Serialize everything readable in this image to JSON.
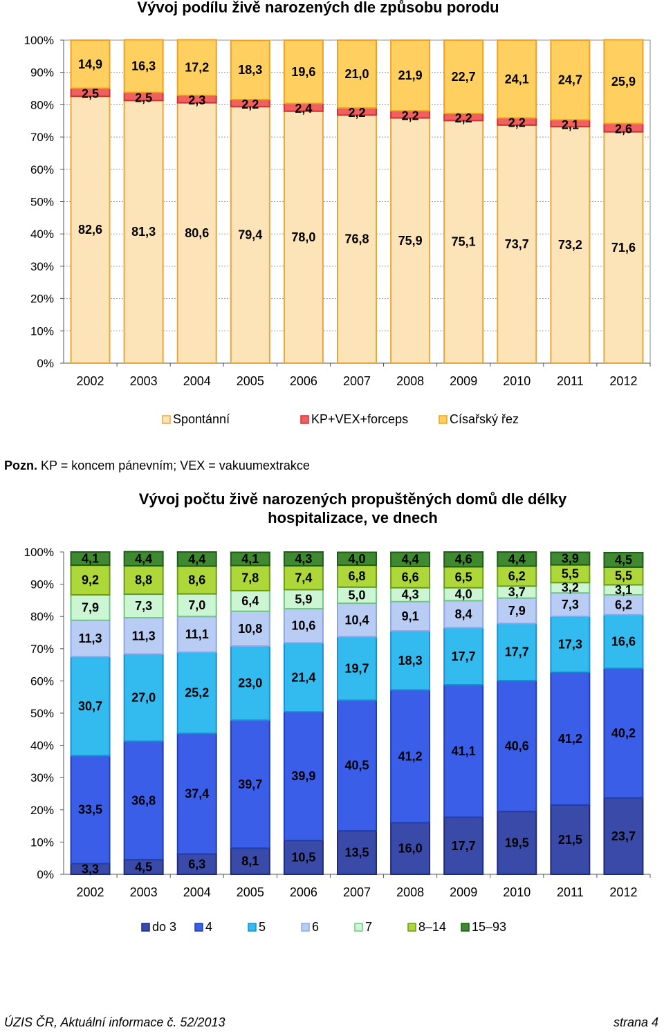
{
  "chart_data": [
    {
      "type": "bar",
      "stacked": true,
      "percent": true,
      "title": "Vývoj podílu živě narozených dle způsobu porodu",
      "categories": [
        "2002",
        "2003",
        "2004",
        "2005",
        "2006",
        "2007",
        "2008",
        "2009",
        "2010",
        "2011",
        "2012"
      ],
      "yticks": [
        "0%",
        "10%",
        "20%",
        "30%",
        "40%",
        "50%",
        "60%",
        "70%",
        "80%",
        "90%",
        "100%"
      ],
      "ylim": [
        0,
        100
      ],
      "grid": true,
      "legend_position": "bottom",
      "series": [
        {
          "name": "Spontánní",
          "color": "#fde3b8",
          "values": [
            82.6,
            81.3,
            80.6,
            79.4,
            78.0,
            76.8,
            75.9,
            75.1,
            73.7,
            73.2,
            71.6
          ],
          "labels": [
            "82,6",
            "81,3",
            "80,6",
            "79,4",
            "78,0",
            "76,8",
            "75,9",
            "75,1",
            "73,7",
            "73,2",
            "71,6"
          ]
        },
        {
          "name": "KP+VEX+forceps",
          "color": "#f06060",
          "values": [
            2.5,
            2.5,
            2.3,
            2.2,
            2.4,
            2.2,
            2.2,
            2.2,
            2.2,
            2.1,
            2.6
          ],
          "labels": [
            "2,5",
            "2,5",
            "2,3",
            "2,2",
            "2,4",
            "2,2",
            "2,2",
            "2,2",
            "2,2",
            "2,1",
            "2,6"
          ]
        },
        {
          "name": "Císařský řez",
          "color": "#ffd060",
          "values": [
            14.9,
            16.3,
            17.2,
            18.3,
            19.6,
            21.0,
            21.9,
            22.7,
            24.1,
            24.7,
            25.9
          ],
          "labels": [
            "14,9",
            "16,3",
            "17,2",
            "18,3",
            "19,6",
            "21,0",
            "21,9",
            "22,7",
            "24,1",
            "24,7",
            "25,9"
          ]
        }
      ]
    },
    {
      "type": "bar",
      "stacked": true,
      "percent": true,
      "title": "Vývoj počtu živě narozených propuštěných domů dle délky hospitalizace, ve dnech",
      "categories": [
        "2002",
        "2003",
        "2004",
        "2005",
        "2006",
        "2007",
        "2008",
        "2009",
        "2010",
        "2011",
        "2012"
      ],
      "yticks": [
        "0%",
        "10%",
        "20%",
        "30%",
        "40%",
        "50%",
        "60%",
        "70%",
        "80%",
        "90%",
        "100%"
      ],
      "ylim": [
        0,
        100
      ],
      "grid": false,
      "legend_position": "bottom",
      "series": [
        {
          "name": "do 3",
          "color": "#3a4aa8",
          "values": [
            3.3,
            4.5,
            6.3,
            8.1,
            10.5,
            13.5,
            16.0,
            17.7,
            19.5,
            21.5,
            23.7
          ],
          "labels": [
            "3,3",
            "4,5",
            "6,3",
            "8,1",
            "10,5",
            "13,5",
            "16,0",
            "17,7",
            "19,5",
            "21,5",
            "23,7"
          ]
        },
        {
          "name": "4",
          "color": "#3a5ee8",
          "values": [
            33.5,
            36.8,
            37.4,
            39.7,
            39.9,
            40.5,
            41.2,
            41.1,
            40.6,
            41.2,
            40.2
          ],
          "labels": [
            "33,5",
            "36,8",
            "37,4",
            "39,7",
            "39,9",
            "40,5",
            "41,2",
            "41,1",
            "40,6",
            "41,2",
            "40,2"
          ]
        },
        {
          "name": "5",
          "color": "#33bbf0",
          "values": [
            30.7,
            27.0,
            25.2,
            23.0,
            21.4,
            19.7,
            18.3,
            17.7,
            17.7,
            17.3,
            16.6
          ],
          "labels": [
            "30,7",
            "27,0",
            "25,2",
            "23,0",
            "21,4",
            "19,7",
            "18,3",
            "17,7",
            "17,7",
            "17,3",
            "16,6"
          ]
        },
        {
          "name": "6",
          "color": "#b8ccf4",
          "values": [
            11.3,
            11.3,
            11.1,
            10.8,
            10.6,
            10.4,
            9.1,
            8.4,
            7.9,
            7.3,
            6.2
          ],
          "labels": [
            "11,3",
            "11,3",
            "11,1",
            "10,8",
            "10,6",
            "10,4",
            "9,1",
            "8,4",
            "7,9",
            "7,3",
            "6,2"
          ]
        },
        {
          "name": "7",
          "color": "#ccf5d4",
          "values": [
            7.9,
            7.3,
            7.0,
            6.4,
            5.9,
            5.0,
            4.3,
            4.0,
            3.7,
            3.2,
            3.1
          ],
          "labels": [
            "7,9",
            "7,3",
            "7,0",
            "6,4",
            "5,9",
            "5,0",
            "4,3",
            "4,0",
            "3,7",
            "3,2",
            "3,1"
          ]
        },
        {
          "name": "8–14",
          "color": "#aed83a",
          "values": [
            9.2,
            8.8,
            8.6,
            7.8,
            7.4,
            6.8,
            6.6,
            6.5,
            6.2,
            5.5,
            5.5
          ],
          "labels": [
            "9,2",
            "8,8",
            "8,6",
            "7,8",
            "7,4",
            "6,8",
            "6,6",
            "6,5",
            "6,2",
            "5,5",
            "5,5"
          ]
        },
        {
          "name": "15–93",
          "color": "#3f8a30",
          "values": [
            4.1,
            4.4,
            4.4,
            4.1,
            4.3,
            4.0,
            4.4,
            4.6,
            4.4,
            3.9,
            4.5
          ],
          "labels": [
            "4,1",
            "4,4",
            "4,4",
            "4,1",
            "4,3",
            "4,0",
            "4,4",
            "4,6",
            "4,4",
            "3,9",
            "4,5"
          ]
        }
      ]
    }
  ],
  "note": {
    "prefix": "Pozn.",
    "text": " KP = koncem pánevním; VEX  = vakuumextrakce"
  },
  "footer": {
    "left": "ÚZIS ČR, Aktuální informace č. 52/2013",
    "right": "strana 4"
  }
}
